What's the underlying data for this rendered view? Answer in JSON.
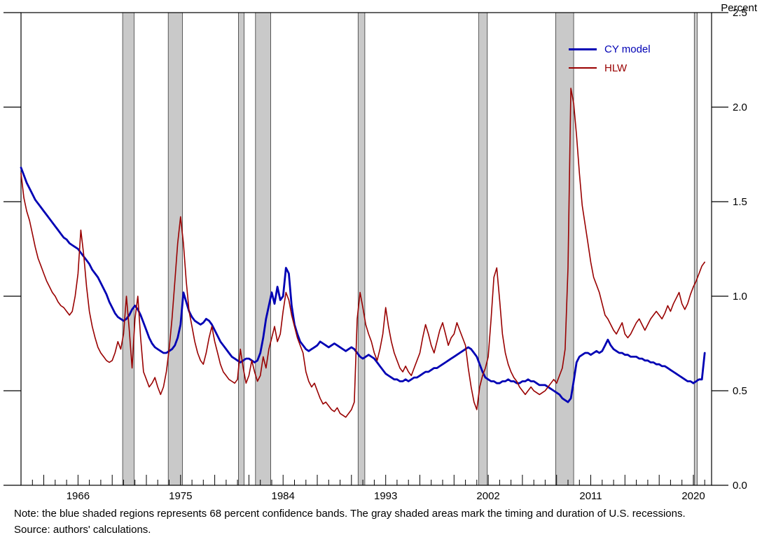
{
  "notes": {
    "line1": "Note: the blue shaded regions represents 68 percent confidence bands. The gray shaded areas mark the timing and duration of U.S. recessions.",
    "line2": "Source: authors' calculations."
  },
  "chart_data": {
    "type": "line",
    "title": "",
    "xlabel": "",
    "ylabel": "Percent",
    "ylim": [
      0.0,
      2.5
    ],
    "ytick_interval": 0.5,
    "ytick_labels": [
      "0.0",
      "0.5",
      "1.0",
      "1.5",
      "2.0",
      "2.5"
    ],
    "x_domain": [
      1961.0,
      2021.6
    ],
    "xtick_label_years": [
      1966,
      1975,
      1984,
      1993,
      2002,
      2011,
      2020
    ],
    "x_start": 1961.0,
    "x_step": 0.25,
    "grid": false,
    "legend_position": "upper right inside",
    "recession_fill": "#C9C9C9",
    "recession_edge": "#3a3a3a",
    "recessions": [
      [
        1969.92,
        1970.92
      ],
      [
        1973.92,
        1975.17
      ],
      [
        1980.08,
        1980.58
      ],
      [
        1981.58,
        1982.92
      ],
      [
        1990.58,
        1991.17
      ],
      [
        2001.17,
        2001.92
      ],
      [
        2007.92,
        2009.5
      ],
      [
        2020.08,
        2020.33
      ]
    ],
    "series": [
      {
        "name": "CY model",
        "color": "#0000B4",
        "width": 2.8,
        "values": [
          1.68,
          1.64,
          1.6,
          1.57,
          1.54,
          1.51,
          1.49,
          1.47,
          1.45,
          1.43,
          1.41,
          1.39,
          1.37,
          1.35,
          1.33,
          1.31,
          1.3,
          1.28,
          1.27,
          1.26,
          1.25,
          1.23,
          1.21,
          1.19,
          1.17,
          1.14,
          1.12,
          1.1,
          1.07,
          1.04,
          1.01,
          0.97,
          0.94,
          0.91,
          0.89,
          0.88,
          0.87,
          0.88,
          0.9,
          0.93,
          0.95,
          0.93,
          0.9,
          0.86,
          0.82,
          0.78,
          0.75,
          0.73,
          0.72,
          0.71,
          0.7,
          0.7,
          0.71,
          0.72,
          0.74,
          0.78,
          0.85,
          1.02,
          0.97,
          0.92,
          0.89,
          0.87,
          0.86,
          0.85,
          0.86,
          0.88,
          0.87,
          0.85,
          0.82,
          0.79,
          0.76,
          0.74,
          0.72,
          0.7,
          0.68,
          0.67,
          0.66,
          0.65,
          0.66,
          0.67,
          0.67,
          0.66,
          0.65,
          0.66,
          0.7,
          0.78,
          0.88,
          0.95,
          1.02,
          0.96,
          1.05,
          0.98,
          1.0,
          1.15,
          1.12,
          0.95,
          0.85,
          0.8,
          0.76,
          0.74,
          0.72,
          0.71,
          0.72,
          0.73,
          0.74,
          0.76,
          0.75,
          0.74,
          0.73,
          0.74,
          0.75,
          0.74,
          0.73,
          0.72,
          0.71,
          0.72,
          0.73,
          0.72,
          0.7,
          0.68,
          0.67,
          0.68,
          0.69,
          0.68,
          0.67,
          0.65,
          0.63,
          0.61,
          0.59,
          0.58,
          0.57,
          0.56,
          0.56,
          0.55,
          0.55,
          0.56,
          0.55,
          0.56,
          0.57,
          0.57,
          0.58,
          0.59,
          0.6,
          0.6,
          0.61,
          0.62,
          0.62,
          0.63,
          0.64,
          0.65,
          0.66,
          0.67,
          0.68,
          0.69,
          0.7,
          0.71,
          0.72,
          0.73,
          0.72,
          0.7,
          0.68,
          0.64,
          0.6,
          0.57,
          0.56,
          0.55,
          0.55,
          0.54,
          0.54,
          0.55,
          0.55,
          0.56,
          0.55,
          0.55,
          0.54,
          0.54,
          0.55,
          0.55,
          0.56,
          0.55,
          0.55,
          0.54,
          0.53,
          0.53,
          0.53,
          0.52,
          0.51,
          0.5,
          0.49,
          0.48,
          0.46,
          0.45,
          0.44,
          0.46,
          0.55,
          0.65,
          0.68,
          0.69,
          0.7,
          0.7,
          0.69,
          0.7,
          0.71,
          0.7,
          0.71,
          0.74,
          0.77,
          0.74,
          0.72,
          0.71,
          0.7,
          0.7,
          0.69,
          0.69,
          0.68,
          0.68,
          0.68,
          0.67,
          0.67,
          0.66,
          0.66,
          0.65,
          0.65,
          0.64,
          0.64,
          0.63,
          0.63,
          0.62,
          0.61,
          0.6,
          0.59,
          0.58,
          0.57,
          0.56,
          0.55,
          0.55,
          0.54,
          0.55,
          0.56,
          0.56,
          0.7
        ]
      },
      {
        "name": "HLW",
        "color": "#990000",
        "width": 1.6,
        "values": [
          1.65,
          1.52,
          1.45,
          1.4,
          1.33,
          1.26,
          1.2,
          1.16,
          1.12,
          1.08,
          1.05,
          1.02,
          1.0,
          0.97,
          0.95,
          0.94,
          0.92,
          0.9,
          0.92,
          1.0,
          1.12,
          1.35,
          1.22,
          1.05,
          0.92,
          0.84,
          0.78,
          0.73,
          0.7,
          0.68,
          0.66,
          0.65,
          0.66,
          0.7,
          0.76,
          0.72,
          0.8,
          1.0,
          0.82,
          0.62,
          0.88,
          1.0,
          0.78,
          0.6,
          0.56,
          0.52,
          0.54,
          0.57,
          0.52,
          0.48,
          0.52,
          0.6,
          0.72,
          0.88,
          1.08,
          1.28,
          1.42,
          1.28,
          1.08,
          0.92,
          0.84,
          0.76,
          0.7,
          0.66,
          0.64,
          0.7,
          0.78,
          0.84,
          0.76,
          0.7,
          0.64,
          0.6,
          0.58,
          0.56,
          0.55,
          0.54,
          0.56,
          0.72,
          0.62,
          0.54,
          0.58,
          0.66,
          0.6,
          0.55,
          0.58,
          0.68,
          0.62,
          0.72,
          0.78,
          0.84,
          0.76,
          0.8,
          0.92,
          1.02,
          0.98,
          0.9,
          0.84,
          0.78,
          0.74,
          0.7,
          0.6,
          0.55,
          0.52,
          0.54,
          0.5,
          0.46,
          0.43,
          0.44,
          0.42,
          0.4,
          0.39,
          0.41,
          0.38,
          0.37,
          0.36,
          0.38,
          0.4,
          0.44,
          0.88,
          1.02,
          0.94,
          0.85,
          0.8,
          0.76,
          0.7,
          0.66,
          0.72,
          0.8,
          0.94,
          0.84,
          0.76,
          0.7,
          0.66,
          0.62,
          0.6,
          0.63,
          0.6,
          0.58,
          0.62,
          0.66,
          0.7,
          0.78,
          0.85,
          0.8,
          0.74,
          0.7,
          0.76,
          0.82,
          0.86,
          0.8,
          0.74,
          0.78,
          0.8,
          0.86,
          0.82,
          0.78,
          0.74,
          0.62,
          0.52,
          0.44,
          0.4,
          0.52,
          0.58,
          0.62,
          0.68,
          0.88,
          1.1,
          1.15,
          0.98,
          0.8,
          0.7,
          0.64,
          0.6,
          0.57,
          0.55,
          0.52,
          0.5,
          0.48,
          0.5,
          0.52,
          0.5,
          0.49,
          0.48,
          0.49,
          0.5,
          0.52,
          0.54,
          0.56,
          0.54,
          0.58,
          0.62,
          0.72,
          1.15,
          2.1,
          2.02,
          1.85,
          1.65,
          1.48,
          1.38,
          1.28,
          1.18,
          1.1,
          1.06,
          1.02,
          0.96,
          0.9,
          0.88,
          0.85,
          0.82,
          0.8,
          0.83,
          0.86,
          0.8,
          0.78,
          0.8,
          0.83,
          0.86,
          0.88,
          0.85,
          0.82,
          0.85,
          0.88,
          0.9,
          0.92,
          0.9,
          0.88,
          0.91,
          0.95,
          0.92,
          0.96,
          0.99,
          1.02,
          0.96,
          0.93,
          0.96,
          1.01,
          1.05,
          1.08,
          1.12,
          1.16,
          1.18
        ]
      }
    ]
  }
}
